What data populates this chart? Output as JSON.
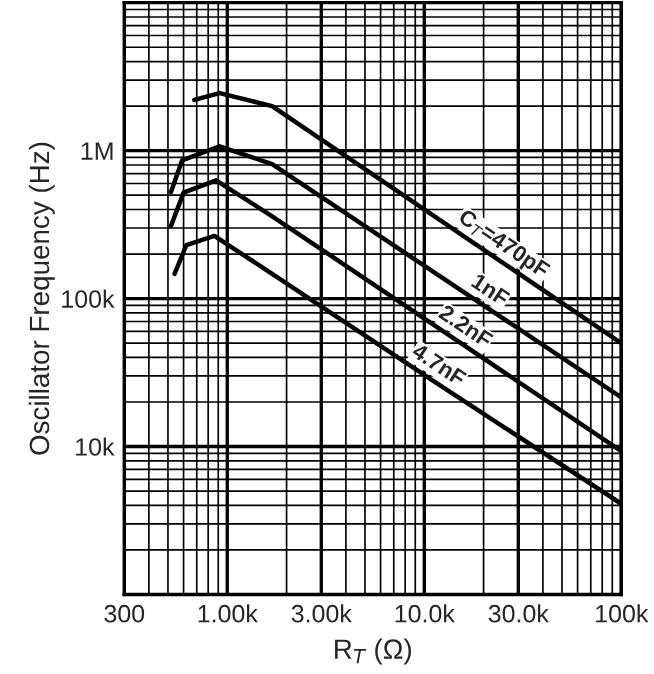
{
  "chart_data": {
    "type": "line",
    "xlabel": "R$_{T}$ (Ω)",
    "ylabel": "Oscillator Frequency (Hz)",
    "log": "xy",
    "grid": true,
    "legend": false,
    "marker": "none",
    "line_style": "solid",
    "xlim": [
      300,
      100000
    ],
    "ylim": [
      1000,
      10000000
    ],
    "xticks": [
      {
        "value": 300,
        "label": "300"
      },
      {
        "value": 1000,
        "label": "1.00k"
      },
      {
        "value": 3000,
        "label": "3.00k"
      },
      {
        "value": 10000,
        "label": "10.0k"
      },
      {
        "value": 30000,
        "label": "30.0k"
      },
      {
        "value": 100000,
        "label": "100k"
      }
    ],
    "yticks": [
      {
        "value": 10000,
        "label": "10k"
      },
      {
        "value": 100000,
        "label": "100k"
      },
      {
        "value": 1000000,
        "label": "1M"
      }
    ],
    "series": [
      {
        "name": "C$_{T}$=470pF",
        "color": "#000000",
        "x": [
          680,
          915,
          1690,
          23500,
          100000
        ],
        "values": [
          2200000,
          2450000,
          2000000,
          185000,
          50000
        ]
      },
      {
        "name": "1nF",
        "color": "#000000",
        "x": [
          518,
          590,
          915,
          1690,
          20000,
          100000
        ],
        "values": [
          525000,
          860000,
          1070000,
          810000,
          90000,
          21500
        ]
      },
      {
        "name": "2.2nF",
        "color": "#000000",
        "x": [
          518,
          600,
          877,
          1690,
          15000,
          100000
        ],
        "values": [
          310000,
          520000,
          630000,
          360000,
          51000,
          9300
        ]
      },
      {
        "name": "4.7nF",
        "color": "#000000",
        "x": [
          540,
          620,
          860,
          1690,
          11000,
          100000
        ],
        "values": [
          147000,
          230000,
          265000,
          147000,
          28000,
          4100
        ]
      }
    ]
  }
}
